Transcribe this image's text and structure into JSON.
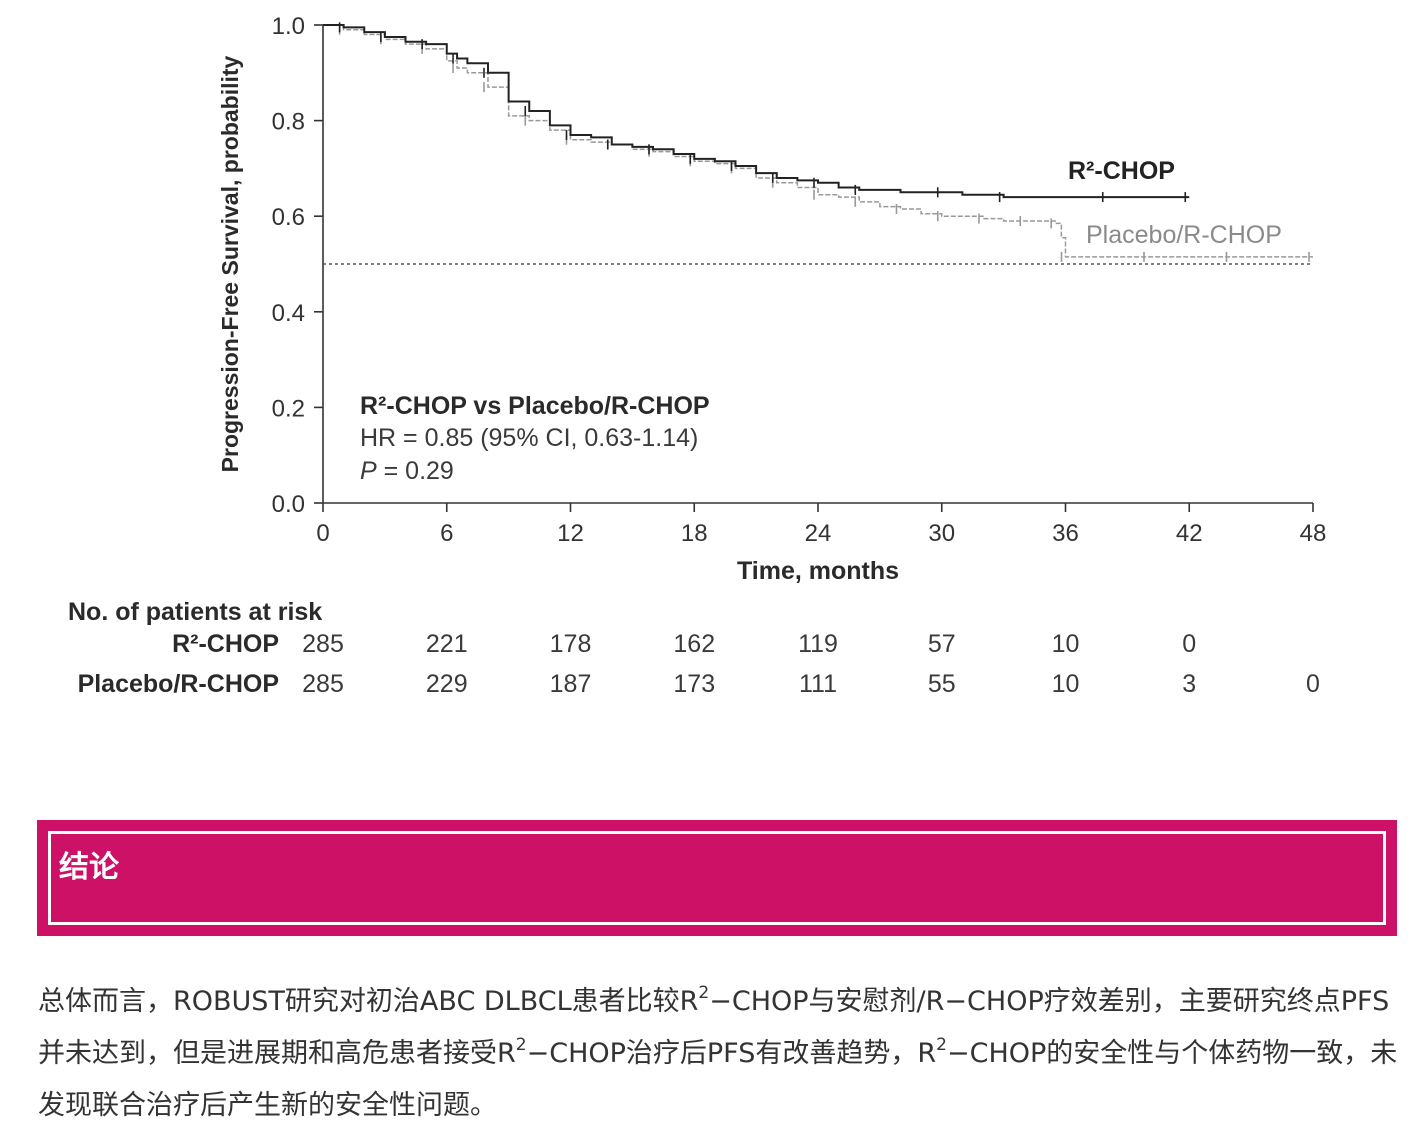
{
  "chart_data": {
    "type": "line",
    "title": "",
    "xlabel": "Time, months",
    "ylabel": "Progression-Free Survival, probability",
    "xlim": [
      0,
      48
    ],
    "ylim": [
      0,
      1
    ],
    "x_ticks": [
      0,
      6,
      12,
      18,
      24,
      30,
      36,
      42,
      48
    ],
    "y_ticks": [
      "0.0",
      "0.2",
      "0.4",
      "0.6",
      "0.8",
      "1.0"
    ],
    "median_reference_line": 0.5,
    "series": [
      {
        "name": "R²-CHOP",
        "color": "#222222",
        "x": [
          0,
          1,
          2,
          3,
          4,
          5,
          6,
          6.5,
          7,
          8,
          9,
          10,
          11,
          12,
          13,
          14,
          15,
          16,
          17,
          18,
          19,
          20,
          21,
          22,
          23,
          24,
          25,
          26,
          28,
          30,
          31,
          33,
          36,
          38,
          40,
          42
        ],
        "y": [
          1.0,
          0.995,
          0.985,
          0.975,
          0.965,
          0.96,
          0.94,
          0.93,
          0.92,
          0.9,
          0.84,
          0.82,
          0.79,
          0.77,
          0.765,
          0.75,
          0.745,
          0.74,
          0.73,
          0.72,
          0.715,
          0.705,
          0.69,
          0.68,
          0.675,
          0.67,
          0.66,
          0.655,
          0.65,
          0.65,
          0.645,
          0.64,
          0.64,
          0.64,
          0.64,
          0.64
        ]
      },
      {
        "name": "Placebo/R-CHOP",
        "color": "#999999",
        "x": [
          0,
          1,
          2,
          3,
          4,
          5,
          6,
          6.5,
          7,
          8,
          9,
          10,
          11,
          12,
          13,
          14,
          15,
          16,
          17,
          18,
          19,
          20,
          21,
          22,
          23,
          24,
          25,
          26,
          27,
          28,
          29,
          30,
          31,
          32,
          33,
          34,
          35,
          35.5,
          35.8,
          36,
          38,
          40,
          42,
          44,
          46,
          48
        ],
        "y": [
          1.0,
          0.99,
          0.98,
          0.97,
          0.96,
          0.95,
          0.925,
          0.91,
          0.9,
          0.87,
          0.81,
          0.8,
          0.78,
          0.76,
          0.755,
          0.75,
          0.74,
          0.735,
          0.725,
          0.715,
          0.71,
          0.7,
          0.68,
          0.67,
          0.66,
          0.645,
          0.64,
          0.63,
          0.62,
          0.615,
          0.605,
          0.6,
          0.6,
          0.595,
          0.59,
          0.59,
          0.59,
          0.585,
          0.555,
          0.515,
          0.515,
          0.515,
          0.515,
          0.515,
          0.515,
          0.515
        ]
      }
    ],
    "series_labels": [
      "R²-CHOP",
      "Placebo/R-CHOP"
    ],
    "annotation": {
      "title": "R²-CHOP vs Placebo/R-CHOP",
      "hr": "HR = 0.85 (95% CI, 0.63-1.14)",
      "p_label": "P",
      "p_value": " = 0.29"
    },
    "risk_table": {
      "title": "No. of patients at risk",
      "rows": [
        {
          "label": "R²-CHOP",
          "values": [
            "285",
            "221",
            "178",
            "162",
            "119",
            "57",
            "10",
            "0"
          ]
        },
        {
          "label": "Placebo/R-CHOP",
          "values": [
            "285",
            "229",
            "187",
            "173",
            "111",
            "55",
            "10",
            "3",
            "0"
          ]
        }
      ]
    }
  },
  "banner": {
    "title": "结论",
    "color": "#cc1166"
  },
  "conclusion": {
    "part1": "总体而言，ROBUST研究对初治ABC DLBCL患者比较R",
    "sup1": "2",
    "part2": "−CHOP与安慰剂/R−CHOP疗效差别，主要研究终点PFS并未达到，但是进展期和高危患者接受R",
    "sup2": "2",
    "part3": "−CHOP治疗后PFS有改善趋势，R",
    "sup3": "2",
    "part4": "−CHOP的安全性与个体药物一致，未发现联合治疗后产生新的安全性问题。"
  }
}
